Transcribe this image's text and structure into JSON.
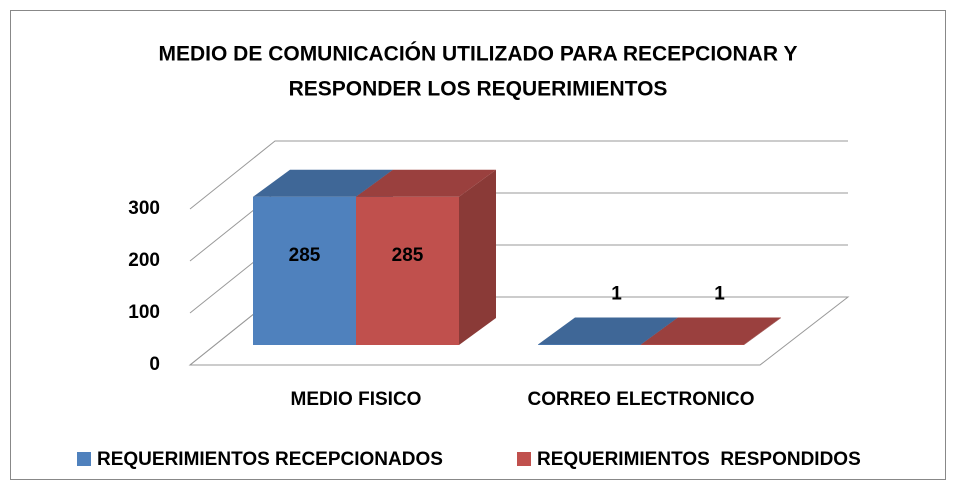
{
  "chart_data": {
    "type": "bar3d",
    "title": [
      "MEDIO DE COMUNICACIÓN UTILIZADO PARA RECEPCIONAR Y",
      "RESPONDER LOS REQUERIMIENTOS"
    ],
    "categories": [
      "MEDIO FISICO",
      "CORREO ELECTRONICO"
    ],
    "series": [
      {
        "name": "REQUERIMIENTOS RECEPCIONADOS",
        "color": "#4f81bd",
        "values": [
          285,
          1
        ]
      },
      {
        "name": "REQUERIMIENTOS  RESPONDIDOS",
        "color": "#c0504d",
        "values": [
          285,
          1
        ]
      }
    ],
    "ylim": [
      0,
      300
    ],
    "yticks": [
      0,
      100,
      200,
      300
    ],
    "grid": true,
    "legend": "bottom"
  }
}
